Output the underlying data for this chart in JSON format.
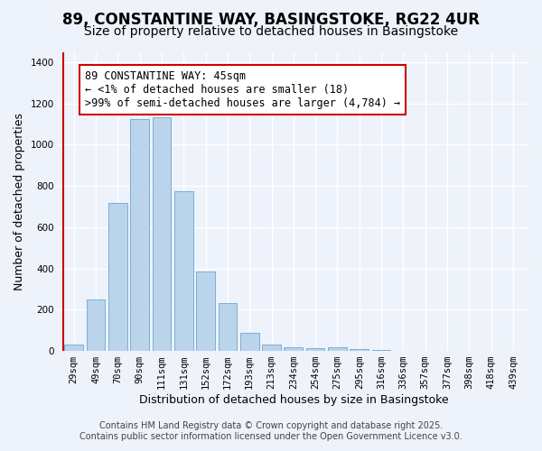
{
  "title": "89, CONSTANTINE WAY, BASINGSTOKE, RG22 4UR",
  "subtitle": "Size of property relative to detached houses in Basingstoke",
  "xlabel": "Distribution of detached houses by size in Basingstoke",
  "ylabel": "Number of detached properties",
  "bar_labels": [
    "29sqm",
    "49sqm",
    "70sqm",
    "90sqm",
    "111sqm",
    "131sqm",
    "152sqm",
    "172sqm",
    "193sqm",
    "213sqm",
    "234sqm",
    "254sqm",
    "275sqm",
    "295sqm",
    "316sqm",
    "336sqm",
    "357sqm",
    "377sqm",
    "398sqm",
    "418sqm",
    "439sqm"
  ],
  "bar_values": [
    30,
    248,
    718,
    1125,
    1135,
    775,
    385,
    232,
    88,
    32,
    18,
    14,
    20,
    8,
    4,
    2,
    1,
    1,
    0,
    0,
    0
  ],
  "bar_color": "#bad4ec",
  "bar_edge_color": "#7aafd4",
  "annotation_text_line1": "89 CONSTANTINE WAY: 45sqm",
  "annotation_text_line2": "← <1% of detached houses are smaller (18)",
  "annotation_text_line3": ">99% of semi-detached houses are larger (4,784) →",
  "annotation_box_color": "white",
  "annotation_box_edge_color": "#cc0000",
  "red_line_x": -0.5,
  "ylim": [
    0,
    1450
  ],
  "yticks": [
    0,
    200,
    400,
    600,
    800,
    1000,
    1200,
    1400
  ],
  "footer_line1": "Contains HM Land Registry data © Crown copyright and database right 2025.",
  "footer_line2": "Contains public sector information licensed under the Open Government Licence v3.0.",
  "bg_color": "#edf2fb",
  "title_fontsize": 12,
  "subtitle_fontsize": 10,
  "axis_label_fontsize": 9,
  "tick_fontsize": 7.5,
  "annotation_fontsize": 8.5,
  "footer_fontsize": 7,
  "grid_color": "white"
}
